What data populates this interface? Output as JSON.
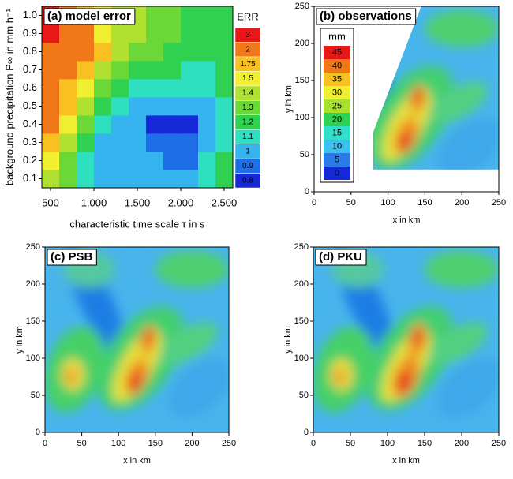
{
  "chart_data": [
    {
      "type": "heatmap",
      "title": "(a) model error",
      "x_label": "characteristic time scale τ in s",
      "y_label": "background precipitation P∞ in mm h⁻¹",
      "x": [
        500,
        700,
        900,
        1100,
        1300,
        1500,
        1700,
        1900,
        2100,
        2300,
        2500
      ],
      "y": [
        0.1,
        0.2,
        0.3,
        0.4,
        0.5,
        0.6,
        0.7,
        0.8,
        0.9,
        1.0
      ],
      "z": [
        [
          1.4,
          1.3,
          1.1,
          1,
          1,
          1,
          1,
          1,
          1,
          1.1,
          1.2
        ],
        [
          1.5,
          1.3,
          1.1,
          1,
          1,
          1,
          1,
          0.9,
          0.9,
          1.1,
          1.2
        ],
        [
          1.75,
          1.4,
          1.2,
          1,
          1,
          1,
          0.9,
          0.9,
          0.9,
          1,
          1.1
        ],
        [
          2,
          1.5,
          1.3,
          1.1,
          1,
          1,
          0.8,
          0.8,
          0.8,
          1,
          1.1
        ],
        [
          2,
          1.75,
          1.4,
          1.2,
          1.1,
          1,
          1,
          1,
          1,
          1,
          1.1
        ],
        [
          2,
          1.75,
          1.5,
          1.3,
          1.2,
          1.1,
          1.1,
          1.1,
          1.1,
          1.1,
          1.2
        ],
        [
          2,
          2,
          1.75,
          1.4,
          1.3,
          1.2,
          1.2,
          1.2,
          1.1,
          1.1,
          1.2
        ],
        [
          2,
          2,
          2,
          1.75,
          1.4,
          1.3,
          1.3,
          1.2,
          1.2,
          1.2,
          1.2
        ],
        [
          3,
          2,
          2,
          1.5,
          1.4,
          1.4,
          1.3,
          1.3,
          1.2,
          1.2,
          1.2
        ],
        [
          3,
          2,
          1.75,
          1.5,
          1.4,
          1.4,
          1.3,
          1.3,
          1.2,
          1.2,
          1.2
        ]
      ],
      "xlim": [
        400,
        2600
      ],
      "ylim": [
        0.05,
        1.05
      ],
      "xticks": [
        500,
        {
          "value": 1000,
          "label": "1.000"
        },
        {
          "value": 1500,
          "label": "1.500"
        },
        {
          "value": 2000,
          "label": "2.000"
        },
        {
          "value": 2500,
          "label": "2.500"
        }
      ],
      "yticks": [
        0.1,
        0.2,
        0.3,
        0.4,
        0.5,
        0.6,
        0.7,
        0.8,
        0.9,
        {
          "value": 1,
          "label": "1.0"
        }
      ],
      "colorbar": {
        "title": "ERR",
        "levels": [
          0.8,
          0.9,
          1,
          1.1,
          1.2,
          1.3,
          1.4,
          1.5,
          1.75,
          2,
          3
        ],
        "colors": [
          "#1428d8",
          "#1e6ee8",
          "#36b4f0",
          "#2ee0c0",
          "#30d050",
          "#6cd838",
          "#b0e030",
          "#f0f030",
          "#f8c020",
          "#f07818",
          "#e81818"
        ]
      }
    },
    {
      "type": "map",
      "title": "(b) observations",
      "x_label": "x in km",
      "y_label": "y in km",
      "xlim": [
        0,
        250
      ],
      "ylim": [
        0,
        250
      ],
      "xticks": [
        0,
        50,
        100,
        150,
        200,
        250
      ],
      "yticks": [
        0,
        50,
        100,
        150,
        200,
        250
      ],
      "observed_area": true,
      "colorbar": {
        "title": "mm",
        "levels": [
          0,
          5,
          10,
          15,
          20,
          25,
          30,
          35,
          40,
          45
        ],
        "colors": [
          "#1428d8",
          "#2a7ae8",
          "#3cc0f0",
          "#30e0c8",
          "#30d050",
          "#a8e030",
          "#f0f030",
          "#f8c020",
          "#f07818",
          "#e81818"
        ]
      }
    },
    {
      "type": "map",
      "title": "(c) PSB",
      "x_label": "x in km",
      "y_label": "y in km",
      "xlim": [
        0,
        250
      ],
      "ylim": [
        0,
        250
      ],
      "xticks": [
        0,
        50,
        100,
        150,
        200,
        250
      ],
      "yticks": [
        0,
        50,
        100,
        150,
        200,
        250
      ]
    },
    {
      "type": "map",
      "title": "(d) PKU",
      "x_label": "x in km",
      "y_label": "y in km",
      "xlim": [
        0,
        250
      ],
      "ylim": [
        0,
        250
      ],
      "xticks": [
        0,
        50,
        100,
        150,
        200,
        250
      ],
      "yticks": [
        0,
        50,
        100,
        150,
        200,
        250
      ]
    }
  ]
}
